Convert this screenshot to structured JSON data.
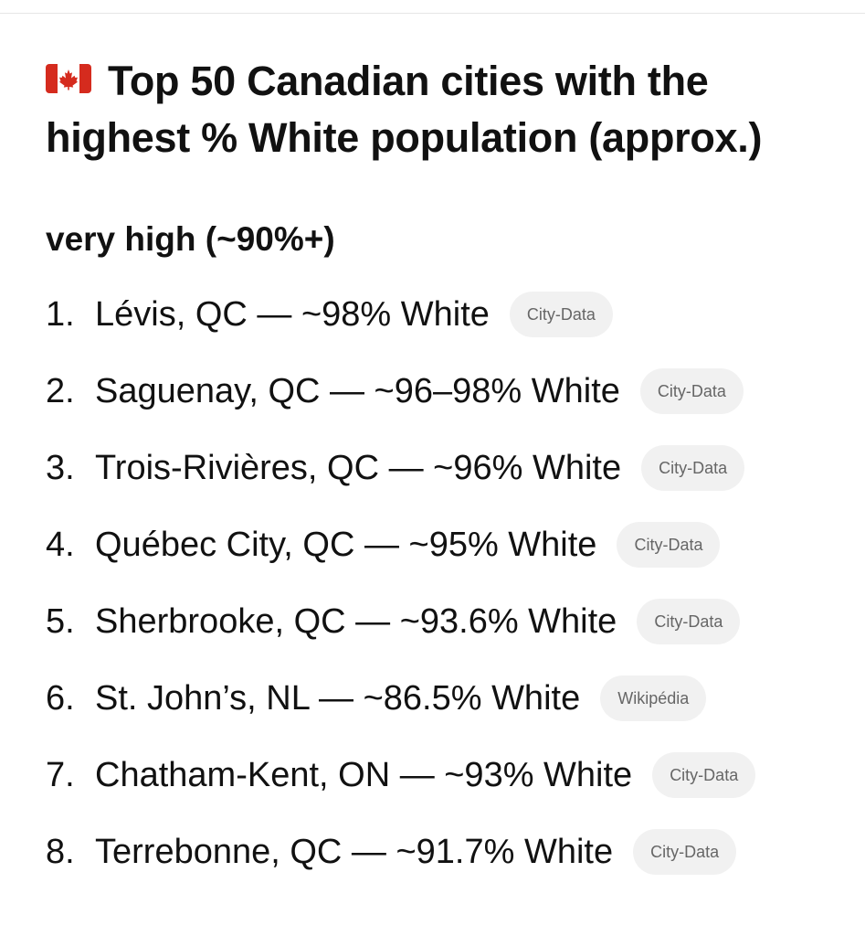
{
  "title": "Top 50 Canadian cities with the highest % White population (approx.)",
  "section_heading": "very high (~90%+)",
  "items": [
    {
      "num": "1.",
      "text": "Lévis, QC — ~98% White",
      "source": "City-Data"
    },
    {
      "num": "2.",
      "text": "Saguenay, QC — ~96–98% White",
      "source": "City-Data"
    },
    {
      "num": "3.",
      "text": "Trois-Rivières, QC — ~96% White",
      "source": "City-Data"
    },
    {
      "num": "4.",
      "text": "Québec City, QC — ~95% White",
      "source": "City-Data"
    },
    {
      "num": "5.",
      "text": "Sherbrooke, QC — ~93.6% White",
      "source": "City-Data"
    },
    {
      "num": "6.",
      "text": "St. John’s, NL — ~86.5% White",
      "source": "Wikipédia"
    },
    {
      "num": "7.",
      "text": "Chatham-Kent, ON — ~93% White",
      "source": "City-Data"
    },
    {
      "num": "8.",
      "text": "Terrebonne, QC — ~91.7% White",
      "source": "City-Data"
    }
  ],
  "icons": {
    "title_icon": "canada-flag-icon"
  },
  "colors": {
    "flag_red": "#d52b1e",
    "badge_bg": "#f1f1f1",
    "badge_text": "#666666"
  }
}
